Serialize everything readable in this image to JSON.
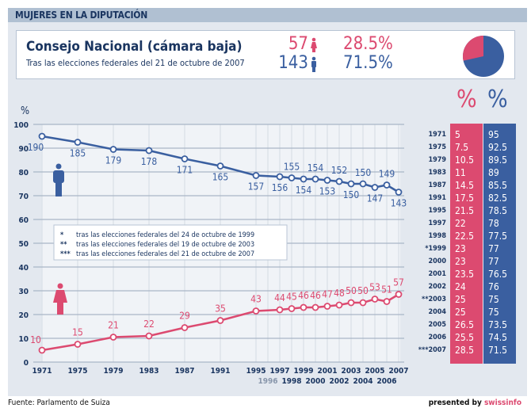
{
  "header": {
    "title": "MUJERES EN LA DIPUTACIÓN"
  },
  "summary": {
    "title": "Consejo Nacional (cámara baja)",
    "subtitle": "Tras las elecciones federales del 21 de octubre de 2007",
    "women_count": "57",
    "men_count": "143",
    "women_pct": "28.5%",
    "men_pct": "71.5%"
  },
  "colors": {
    "women": "#dc4a70",
    "men": "#3a5fa0",
    "text": "#1a3560"
  },
  "table": {
    "women_header": "%",
    "men_header": "%",
    "rows": [
      {
        "year": "1971",
        "women": "5",
        "men": "95"
      },
      {
        "year": "1975",
        "women": "7.5",
        "men": "92.5"
      },
      {
        "year": "1979",
        "women": "10.5",
        "men": "89.5"
      },
      {
        "year": "1983",
        "women": "11",
        "men": "89"
      },
      {
        "year": "1987",
        "women": "14.5",
        "men": "85.5"
      },
      {
        "year": "1991",
        "women": "17.5",
        "men": "82.5"
      },
      {
        "year": "1995",
        "women": "21.5",
        "men": "78.5"
      },
      {
        "year": "1997",
        "women": "22",
        "men": "78"
      },
      {
        "year": "1998",
        "women": "22.5",
        "men": "77.5"
      },
      {
        "year": "*1999",
        "women": "23",
        "men": "77"
      },
      {
        "year": "2000",
        "women": "23",
        "men": "77"
      },
      {
        "year": "2001",
        "women": "23.5",
        "men": "76.5"
      },
      {
        "year": "2002",
        "women": "24",
        "men": "76"
      },
      {
        "year": "**2003",
        "women": "25",
        "men": "75"
      },
      {
        "year": "2004",
        "women": "25",
        "men": "75"
      },
      {
        "year": "2005",
        "women": "26.5",
        "men": "73.5"
      },
      {
        "year": "2006",
        "women": "25.5",
        "men": "74.5"
      },
      {
        "year": "***2007",
        "women": "28.5",
        "men": "71.5"
      }
    ]
  },
  "chart_data": {
    "type": "line",
    "ylabel": "%",
    "ylim": [
      0,
      100
    ],
    "yticks": [
      0,
      10,
      20,
      30,
      40,
      50,
      60,
      70,
      80,
      90,
      100
    ],
    "grid": true,
    "xticks": [
      "1971",
      "1975",
      "1979",
      "1983",
      "1987",
      "1991",
      "1995",
      "1996",
      "1997",
      "1998",
      "1999",
      "2000",
      "2001",
      "2002",
      "2003",
      "2004",
      "2005",
      "2006",
      "2007"
    ],
    "x": [
      1971,
      1975,
      1979,
      1983,
      1987,
      1991,
      1995,
      1997,
      1998,
      1999,
      2000,
      2001,
      2002,
      2003,
      2004,
      2005,
      2006,
      2007
    ],
    "series": [
      {
        "values": [
          95,
          92.5,
          89.5,
          89,
          85.5,
          82.5,
          78.5,
          78,
          77.5,
          77,
          77,
          76.5,
          76,
          75,
          75,
          73.5,
          74.5,
          71.5
        ],
        "labels": [
          "190",
          "185",
          "179",
          "178",
          "171",
          "165",
          "157",
          "156",
          "155",
          "154",
          "154",
          "153",
          "152",
          "150",
          "150",
          "147",
          "149",
          "143"
        ],
        "color": "#3a5fa0"
      },
      {
        "values": [
          5,
          7.5,
          10.5,
          11,
          14.5,
          17.5,
          21.5,
          22,
          22.5,
          23,
          23,
          23.5,
          24,
          25,
          25,
          26.5,
          25.5,
          28.5
        ],
        "labels": [
          "10",
          "15",
          "21",
          "22",
          "29",
          "35",
          "43",
          "44",
          "45",
          "46",
          "46",
          "47",
          "48",
          "50",
          "50",
          "53",
          "51",
          "57"
        ],
        "color": "#dc4a70"
      }
    ],
    "legend": [
      "*",
      "**",
      "***"
    ],
    "notes": [
      "tras las elecciones federales del 24 de octubre de 1999",
      "tras las elecciones federales del 19 de octubre de 2003",
      "tras las elecciones federales del 21 de octubre de 2007"
    ]
  },
  "footer": {
    "source": "Fuente: Parlamento de Suiza",
    "presented": "presented by ",
    "brand": "swissinfo"
  }
}
